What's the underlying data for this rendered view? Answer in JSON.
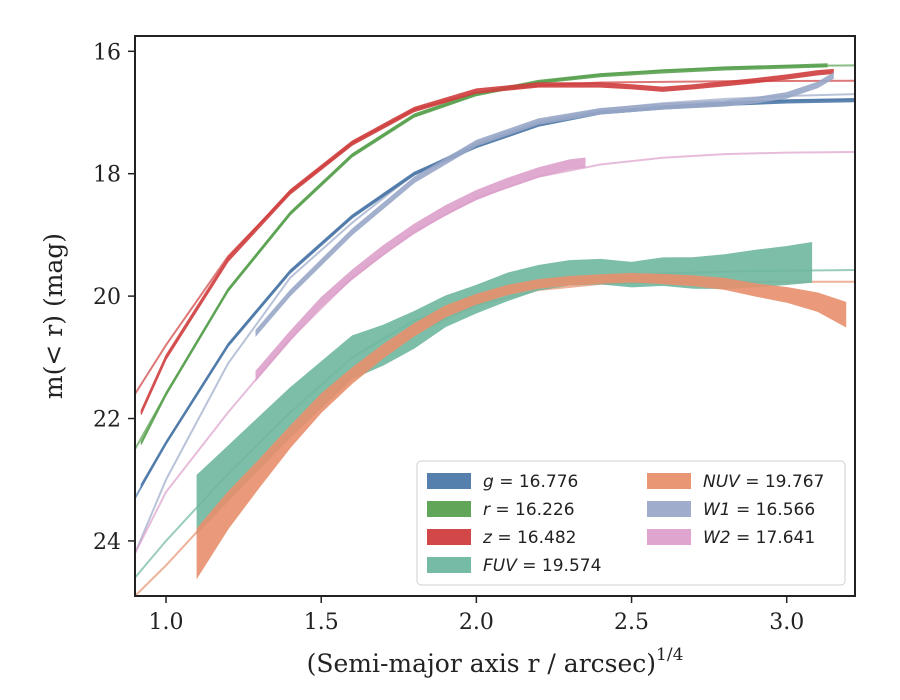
{
  "chart_data": {
    "type": "line",
    "xlabel": "(Semi-major axis r / arcsec)",
    "xlabel_exponent": "1/4",
    "ylabel": "m(< r) (mag)",
    "xlim": [
      0.9,
      3.22
    ],
    "ylim": [
      24.9,
      15.75
    ],
    "y_inverted": true,
    "x_ticks": [
      1.0,
      1.5,
      2.0,
      2.5,
      3.0
    ],
    "x_tick_labels": [
      "1.0",
      "1.5",
      "2.0",
      "2.5",
      "3.0"
    ],
    "y_ticks": [
      16,
      18,
      20,
      22,
      24
    ],
    "y_tick_labels": [
      "16",
      "18",
      "20",
      "22",
      "24"
    ],
    "grid": false,
    "legend_position": "lower-right",
    "legend_columns": 2,
    "series": [
      {
        "name": "g = 16.776",
        "band": "g",
        "total_mag": "16.776",
        "color": "#4c78a8",
        "model": {
          "x": [
            0.9,
            1.0,
            1.2,
            1.4,
            1.6,
            1.8,
            2.0,
            2.2,
            2.4,
            2.6,
            2.8,
            3.0,
            3.22
          ],
          "y": [
            23.3,
            22.4,
            20.8,
            19.6,
            18.7,
            18.0,
            17.55,
            17.2,
            17.0,
            16.9,
            16.84,
            16.8,
            16.78
          ]
        },
        "measured": {
          "x": [
            0.92,
            1.0,
            1.2,
            1.4,
            1.6,
            1.8,
            2.0,
            2.2,
            2.4,
            2.6,
            2.8,
            3.0,
            3.22
          ],
          "y": [
            23.1,
            22.4,
            20.8,
            19.6,
            18.7,
            18.0,
            17.55,
            17.2,
            17.0,
            16.92,
            16.86,
            16.82,
            16.8
          ],
          "width": 0.05
        }
      },
      {
        "name": "r = 16.226",
        "band": "r",
        "total_mag": "16.226",
        "color": "#59a14f",
        "model": {
          "x": [
            0.9,
            1.0,
            1.2,
            1.4,
            1.6,
            1.8,
            2.0,
            2.2,
            2.4,
            2.6,
            2.8,
            3.0,
            3.22
          ],
          "y": [
            22.5,
            21.6,
            19.9,
            18.65,
            17.7,
            17.05,
            16.7,
            16.5,
            16.38,
            16.31,
            16.27,
            16.24,
            16.23
          ]
        },
        "measured": {
          "x": [
            0.92,
            1.0,
            1.2,
            1.4,
            1.6,
            1.8,
            2.0,
            2.2,
            2.4,
            2.6,
            2.8,
            3.0,
            3.13
          ],
          "y": [
            22.4,
            21.6,
            19.9,
            18.65,
            17.7,
            17.05,
            16.7,
            16.5,
            16.39,
            16.33,
            16.28,
            16.25,
            16.23
          ],
          "width": 0.05
        }
      },
      {
        "name": "z = 16.482",
        "band": "z",
        "total_mag": "16.482",
        "color": "#d03e3e",
        "model": {
          "x": [
            0.9,
            1.0,
            1.2,
            1.4,
            1.6,
            1.8,
            2.0,
            2.2,
            2.4,
            2.6,
            2.8,
            3.0,
            3.22
          ],
          "y": [
            21.6,
            20.8,
            19.35,
            18.3,
            17.5,
            16.95,
            16.68,
            16.56,
            16.51,
            16.5,
            16.49,
            16.485,
            16.482
          ]
        },
        "measured": {
          "x": [
            0.92,
            1.0,
            1.2,
            1.4,
            1.6,
            1.8,
            2.0,
            2.2,
            2.4,
            2.5,
            2.6,
            2.7,
            2.8,
            2.9,
            3.0,
            3.1,
            3.15
          ],
          "y": [
            21.9,
            21.0,
            19.4,
            18.3,
            17.5,
            16.95,
            16.65,
            16.55,
            16.55,
            16.58,
            16.62,
            16.58,
            16.53,
            16.48,
            16.42,
            16.35,
            16.33
          ],
          "width": 0.07
        }
      },
      {
        "name": "FUV = 19.574",
        "band": "FUV",
        "total_mag": "19.574",
        "color": "#6fb7a0",
        "model": {
          "x": [
            0.9,
            1.0,
            1.2,
            1.4,
            1.6,
            1.8,
            2.0,
            2.2,
            2.4,
            2.6,
            2.8,
            3.0,
            3.22
          ],
          "y": [
            24.6,
            24.0,
            22.9,
            21.9,
            21.0,
            20.4,
            20.05,
            19.82,
            19.7,
            19.63,
            19.6,
            19.585,
            19.574
          ]
        },
        "measured": {
          "x": [
            1.1,
            1.2,
            1.3,
            1.4,
            1.5,
            1.6,
            1.7,
            1.8,
            1.9,
            2.0,
            2.1,
            2.2,
            2.3,
            2.4,
            2.5,
            2.6,
            2.7,
            2.8,
            2.9,
            3.0,
            3.08
          ],
          "y": [
            23.4,
            22.9,
            22.4,
            21.9,
            21.45,
            21.0,
            20.8,
            20.55,
            20.25,
            20.05,
            19.85,
            19.7,
            19.62,
            19.6,
            19.65,
            19.6,
            19.62,
            19.6,
            19.55,
            19.5,
            19.45
          ],
          "width": [
            0.95,
            0.9,
            0.85,
            0.8,
            0.75,
            0.7,
            0.65,
            0.6,
            0.5,
            0.45,
            0.45,
            0.4,
            0.4,
            0.4,
            0.4,
            0.45,
            0.5,
            0.55,
            0.6,
            0.62,
            0.65
          ]
        }
      },
      {
        "name": "NUV = 19.767",
        "band": "NUV",
        "total_mag": "19.767",
        "color": "#e8906d",
        "model": {
          "x": [
            0.9,
            1.0,
            1.2,
            1.4,
            1.6,
            1.8,
            2.0,
            2.2,
            2.4,
            2.6,
            2.8,
            3.0,
            3.22
          ],
          "y": [
            24.9,
            24.4,
            23.3,
            22.3,
            21.3,
            20.6,
            20.15,
            19.9,
            19.8,
            19.77,
            19.768,
            19.767,
            19.767
          ]
        },
        "measured": {
          "x": [
            1.1,
            1.2,
            1.3,
            1.4,
            1.5,
            1.6,
            1.7,
            1.8,
            1.9,
            2.0,
            2.1,
            2.2,
            2.3,
            2.4,
            2.5,
            2.6,
            2.7,
            2.8,
            2.9,
            3.0,
            3.1,
            3.19
          ],
          "y": [
            24.2,
            23.5,
            22.9,
            22.3,
            21.75,
            21.3,
            20.9,
            20.55,
            20.25,
            20.05,
            19.9,
            19.8,
            19.75,
            19.72,
            19.7,
            19.72,
            19.75,
            19.8,
            19.9,
            19.98,
            20.1,
            20.3
          ],
          "width": [
            0.8,
            0.6,
            0.45,
            0.35,
            0.3,
            0.25,
            0.22,
            0.2,
            0.18,
            0.16,
            0.15,
            0.14,
            0.14,
            0.14,
            0.14,
            0.15,
            0.16,
            0.18,
            0.2,
            0.24,
            0.3,
            0.4
          ]
        }
      },
      {
        "name": "W1 = 16.566",
        "band": "W1",
        "total_mag": "16.566",
        "color": "#9aa8c8",
        "model": {
          "x": [
            0.9,
            1.0,
            1.2,
            1.4,
            1.6,
            1.8,
            2.0,
            2.2,
            2.4,
            2.6,
            2.8,
            3.0,
            3.22
          ],
          "y": [
            24.2,
            23.0,
            21.1,
            19.7,
            18.8,
            18.0,
            17.5,
            17.15,
            16.95,
            16.85,
            16.78,
            16.73,
            16.7
          ]
        },
        "measured": {
          "x": [
            1.29,
            1.4,
            1.6,
            1.8,
            2.0,
            2.2,
            2.4,
            2.6,
            2.8,
            2.9,
            3.0,
            3.1,
            3.15
          ],
          "y": [
            20.6,
            19.95,
            18.95,
            18.1,
            17.5,
            17.15,
            16.98,
            16.9,
            16.85,
            16.8,
            16.72,
            16.55,
            16.4
          ],
          "width": 0.09
        }
      },
      {
        "name": "W2 = 17.641",
        "band": "W2",
        "total_mag": "17.641",
        "color": "#dda0cb",
        "model": {
          "x": [
            0.9,
            1.0,
            1.2,
            1.4,
            1.6,
            1.8,
            2.0,
            2.2,
            2.4,
            2.6,
            2.8,
            3.0,
            3.22
          ],
          "y": [
            24.2,
            23.2,
            21.9,
            20.7,
            19.7,
            18.95,
            18.4,
            18.05,
            17.85,
            17.74,
            17.68,
            17.655,
            17.645
          ]
        },
        "measured": {
          "x": [
            1.29,
            1.4,
            1.5,
            1.6,
            1.7,
            1.8,
            1.9,
            2.0,
            2.1,
            2.2,
            2.3,
            2.35
          ],
          "y": [
            21.3,
            20.65,
            20.1,
            19.65,
            19.25,
            18.9,
            18.6,
            18.35,
            18.15,
            17.98,
            17.85,
            17.82
          ],
          "width": 0.15
        }
      }
    ]
  }
}
